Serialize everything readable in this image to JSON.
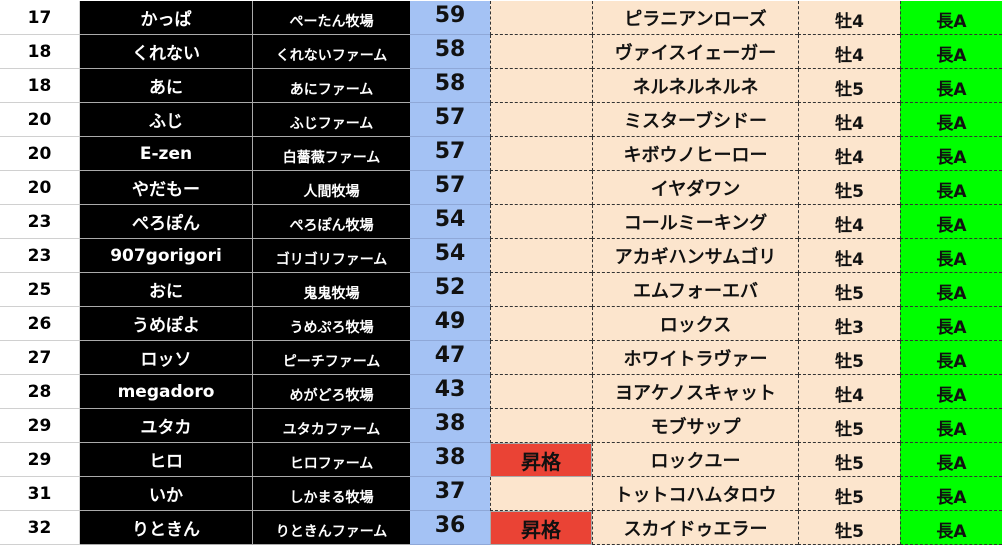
{
  "colors": {
    "name_bg": "#000000",
    "score_bg": "#a4c2f4",
    "horse_bg": "#fce5cd",
    "promotion_bg": "#ea4335",
    "status_bg": "#00ff00"
  },
  "rows": [
    {
      "rank": "17",
      "name": "かっぱ",
      "farm": "ぺーたん牧場",
      "score": "59",
      "promotion": "",
      "horse": "ピラニアンローズ",
      "sex_age": "牡4",
      "status": "長A"
    },
    {
      "rank": "18",
      "name": "くれない",
      "farm": "くれないファーム",
      "score": "58",
      "promotion": "",
      "horse": "ヴァイスイェーガー",
      "sex_age": "牡4",
      "status": "長A"
    },
    {
      "rank": "18",
      "name": "あに",
      "farm": "あにファーム",
      "score": "58",
      "promotion": "",
      "horse": "ネルネルネルネ",
      "sex_age": "牡5",
      "status": "長A"
    },
    {
      "rank": "20",
      "name": "ふじ",
      "farm": "ふじファーム",
      "score": "57",
      "promotion": "",
      "horse": "ミスターブシドー",
      "sex_age": "牡4",
      "status": "長A"
    },
    {
      "rank": "20",
      "name": "E-zen",
      "farm": "白薔薇ファーム",
      "score": "57",
      "promotion": "",
      "horse": "キボウノヒーロー",
      "sex_age": "牡4",
      "status": "長A"
    },
    {
      "rank": "20",
      "name": "やだもー",
      "farm": "人間牧場",
      "score": "57",
      "promotion": "",
      "horse": "イヤダワン",
      "sex_age": "牡5",
      "status": "長A"
    },
    {
      "rank": "23",
      "name": "ぺろぽん",
      "farm": "ぺろぽん牧場",
      "score": "54",
      "promotion": "",
      "horse": "コールミーキング",
      "sex_age": "牡4",
      "status": "長A"
    },
    {
      "rank": "23",
      "name": "907gorigori",
      "farm": "ゴリゴリファーム",
      "score": "54",
      "promotion": "",
      "horse": "アカギハンサムゴリ",
      "sex_age": "牡4",
      "status": "長A"
    },
    {
      "rank": "25",
      "name": "おに",
      "farm": "鬼鬼牧場",
      "score": "52",
      "promotion": "",
      "horse": "エムフォーエバ",
      "sex_age": "牡5",
      "status": "長A"
    },
    {
      "rank": "26",
      "name": "うめぽよ",
      "farm": "うめぷろ牧場",
      "score": "49",
      "promotion": "",
      "horse": "ロックス",
      "sex_age": "牡3",
      "status": "長A"
    },
    {
      "rank": "27",
      "name": "ロッソ",
      "farm": "ピーチファーム",
      "score": "47",
      "promotion": "",
      "horse": "ホワイトラヴァー",
      "sex_age": "牡5",
      "status": "長A"
    },
    {
      "rank": "28",
      "name": "megadoro",
      "farm": "めがどろ牧場",
      "score": "43",
      "promotion": "",
      "horse": "ヨアケノスキャット",
      "sex_age": "牡4",
      "status": "長A"
    },
    {
      "rank": "29",
      "name": "ユタカ",
      "farm": "ユタカファーム",
      "score": "38",
      "promotion": "",
      "horse": "モブサップ",
      "sex_age": "牡5",
      "status": "長A"
    },
    {
      "rank": "29",
      "name": "ヒロ",
      "farm": "ヒロファーム",
      "score": "38",
      "promotion": "昇格",
      "horse": "ロックユー",
      "sex_age": "牡5",
      "status": "長A"
    },
    {
      "rank": "31",
      "name": "いか",
      "farm": "しかまる牧場",
      "score": "37",
      "promotion": "",
      "horse": "トットコハムタロウ",
      "sex_age": "牡5",
      "status": "長A"
    },
    {
      "rank": "32",
      "name": "りときん",
      "farm": "りときんファーム",
      "score": "36",
      "promotion": "昇格",
      "horse": "スカイドゥエラー",
      "sex_age": "牡5",
      "status": "長A"
    }
  ]
}
